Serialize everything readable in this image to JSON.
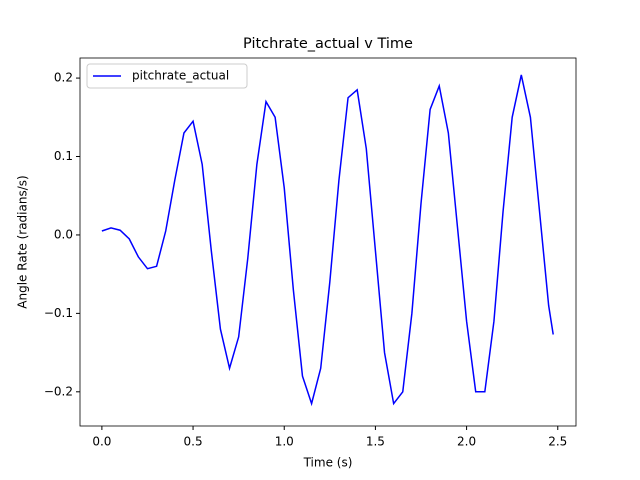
{
  "chart_data": {
    "type": "line",
    "title": "Pitchrate_actual v Time",
    "x_label": "Time (s)",
    "y_label": "Angle Rate (radians/s)",
    "x": [
      0.0,
      0.05,
      0.1,
      0.15,
      0.2,
      0.25,
      0.3,
      0.35,
      0.4,
      0.45,
      0.5,
      0.55,
      0.6,
      0.65,
      0.7,
      0.75,
      0.8,
      0.85,
      0.9,
      0.95,
      1.0,
      1.05,
      1.1,
      1.15,
      1.2,
      1.25,
      1.3,
      1.35,
      1.4,
      1.45,
      1.5,
      1.55,
      1.6,
      1.65,
      1.7,
      1.75,
      1.8,
      1.85,
      1.9,
      1.95,
      2.0,
      2.05,
      2.1,
      2.15,
      2.2,
      2.25,
      2.3,
      2.35,
      2.4,
      2.45,
      2.475
    ],
    "series": [
      {
        "name": "pitchrate_actual",
        "color": "#0000ff",
        "values": [
          0.005,
          0.009,
          0.006,
          -0.005,
          -0.028,
          -0.043,
          -0.04,
          0.005,
          0.07,
          0.13,
          0.145,
          0.09,
          -0.02,
          -0.12,
          -0.17,
          -0.13,
          -0.03,
          0.09,
          0.17,
          0.15,
          0.06,
          -0.07,
          -0.18,
          -0.215,
          -0.17,
          -0.06,
          0.07,
          0.175,
          0.185,
          0.11,
          -0.02,
          -0.15,
          -0.215,
          -0.2,
          -0.1,
          0.04,
          0.16,
          0.19,
          0.13,
          0.01,
          -0.11,
          -0.2,
          -0.2,
          -0.11,
          0.03,
          0.15,
          0.204,
          0.15,
          0.03,
          -0.09,
          -0.127
        ]
      }
    ],
    "xlim": [
      -0.12,
      2.6
    ],
    "ylim": [
      -0.2436,
      0.2256
    ],
    "xticks": [
      {
        "value": 0,
        "label": "0.0"
      },
      0.5,
      {
        "value": 1,
        "label": "1.0"
      },
      1.5,
      {
        "value": 2,
        "label": "2.0"
      },
      2.5
    ],
    "yticks": [
      {
        "value": -0.2,
        "label": "−0.2"
      },
      {
        "value": -0.1,
        "label": "−0.1"
      },
      {
        "value": 0,
        "label": "0.0"
      },
      0.1,
      0.2
    ],
    "legend": "upper left"
  }
}
